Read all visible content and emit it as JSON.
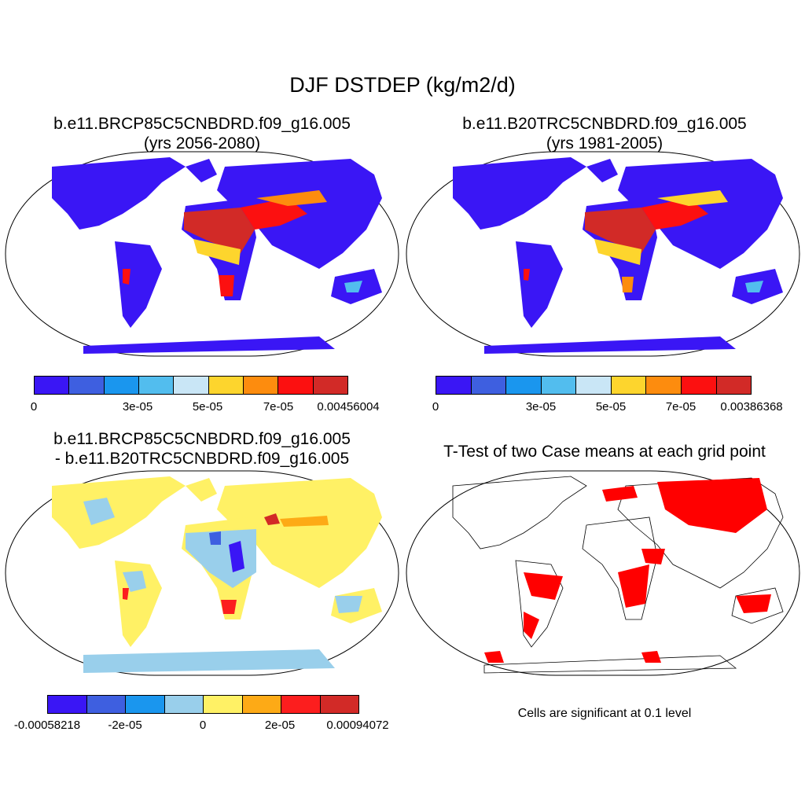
{
  "title": "DJF DSTDEP (kg/m2/d)",
  "panels": {
    "a": {
      "title_line1": "b.e11.BRCP85C5CNBDRD.f09_g16.005",
      "title_line2": "(yrs 2056-2080)"
    },
    "b": {
      "title_line1": "b.e11.B20TRC5CNBDRD.f09_g16.005",
      "title_line2": "(yrs 1981-2005)"
    },
    "c": {
      "title_line1": "b.e11.BRCP85C5CNBDRD.f09_g16.005",
      "title_line2": "- b.e11.B20TRC5CNBDRD.f09_g16.005"
    },
    "d": {
      "title_line1": "T-Test of two Case means at each grid point",
      "footnote": "Cells are significant at 0.1 level"
    }
  },
  "colorbars": {
    "a": {
      "colors": [
        "#3a16f5",
        "#3e5fe0",
        "#1a96ee",
        "#52bdee",
        "#c9e6f6",
        "#fdd52d",
        "#fd8c0e",
        "#fc1010",
        "#d22a27"
      ],
      "labels": [
        "0",
        "3e-05",
        "5e-05",
        "7e-05",
        "0.00456004"
      ]
    },
    "b": {
      "colors": [
        "#3a16f5",
        "#3e5fe0",
        "#1a96ee",
        "#52bdee",
        "#c9e6f6",
        "#fdd52d",
        "#fd8c0e",
        "#fc1010",
        "#d22a27"
      ],
      "labels": [
        "0",
        "3e-05",
        "5e-05",
        "7e-05",
        "0.00386368"
      ]
    },
    "c": {
      "colors": [
        "#3a16f5",
        "#3e5fe0",
        "#1a96ee",
        "#99cfeb",
        "#fff165",
        "#fdaa16",
        "#fc1e1e",
        "#d22a27"
      ],
      "labels": [
        "-0.00058218",
        "-2e-05",
        "0",
        "2e-05",
        "0.00094072"
      ]
    }
  }
}
